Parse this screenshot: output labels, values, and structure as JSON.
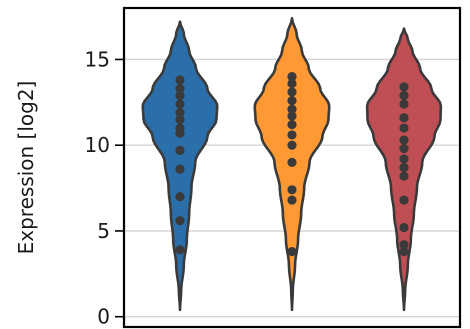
{
  "chart_data": {
    "type": "violin",
    "title": "",
    "xlabel": "",
    "ylabel": "Expression [log2]",
    "ylim": [
      -0.6,
      18.0
    ],
    "yticks": [
      0,
      5,
      10,
      15
    ],
    "grid": "horizontal",
    "series": [
      {
        "color": "#2b6faa",
        "range": [
          0.4,
          17.2
        ],
        "profile": [
          [
            0.4,
            0.0
          ],
          [
            1.5,
            0.03
          ],
          [
            3.0,
            0.1
          ],
          [
            4.5,
            0.18
          ],
          [
            6.0,
            0.24
          ],
          [
            7.5,
            0.3
          ],
          [
            9.0,
            0.4
          ],
          [
            10.5,
            0.72
          ],
          [
            11.5,
            0.96
          ],
          [
            12.3,
            0.98
          ],
          [
            13.3,
            0.72
          ],
          [
            14.5,
            0.42
          ],
          [
            15.5,
            0.24
          ],
          [
            16.5,
            0.1
          ],
          [
            17.2,
            0.0
          ]
        ],
        "points": [
          3.9,
          5.6,
          7.0,
          8.6,
          9.7,
          10.7,
          11.0,
          11.5,
          11.9,
          12.4,
          12.9,
          13.3,
          13.8
        ]
      },
      {
        "color": "#ff9933",
        "range": [
          0.4,
          17.4
        ],
        "profile": [
          [
            0.4,
            0.0
          ],
          [
            1.5,
            0.02
          ],
          [
            3.0,
            0.08
          ],
          [
            4.5,
            0.16
          ],
          [
            6.0,
            0.24
          ],
          [
            7.5,
            0.32
          ],
          [
            9.0,
            0.46
          ],
          [
            10.5,
            0.8
          ],
          [
            11.5,
            0.96
          ],
          [
            12.3,
            0.98
          ],
          [
            13.3,
            0.74
          ],
          [
            14.5,
            0.44
          ],
          [
            15.5,
            0.26
          ],
          [
            16.5,
            0.12
          ],
          [
            17.4,
            0.0
          ]
        ],
        "points": [
          3.8,
          6.8,
          7.4,
          9.0,
          10.0,
          10.6,
          11.2,
          11.7,
          12.1,
          12.6,
          13.1,
          13.6,
          14.0
        ]
      },
      {
        "color": "#c04e55",
        "range": [
          0.4,
          16.8
        ],
        "profile": [
          [
            0.4,
            0.0
          ],
          [
            1.5,
            0.03
          ],
          [
            3.0,
            0.1
          ],
          [
            4.5,
            0.18
          ],
          [
            6.0,
            0.26
          ],
          [
            7.5,
            0.34
          ],
          [
            9.0,
            0.48
          ],
          [
            10.5,
            0.8
          ],
          [
            11.5,
            0.96
          ],
          [
            12.3,
            0.97
          ],
          [
            13.3,
            0.72
          ],
          [
            14.5,
            0.42
          ],
          [
            15.5,
            0.22
          ],
          [
            16.2,
            0.1
          ],
          [
            16.8,
            0.0
          ]
        ],
        "points": [
          3.8,
          4.2,
          5.2,
          6.8,
          8.2,
          8.7,
          9.2,
          9.8,
          10.3,
          11.0,
          11.6,
          12.4,
          12.9,
          13.4
        ]
      }
    ]
  }
}
